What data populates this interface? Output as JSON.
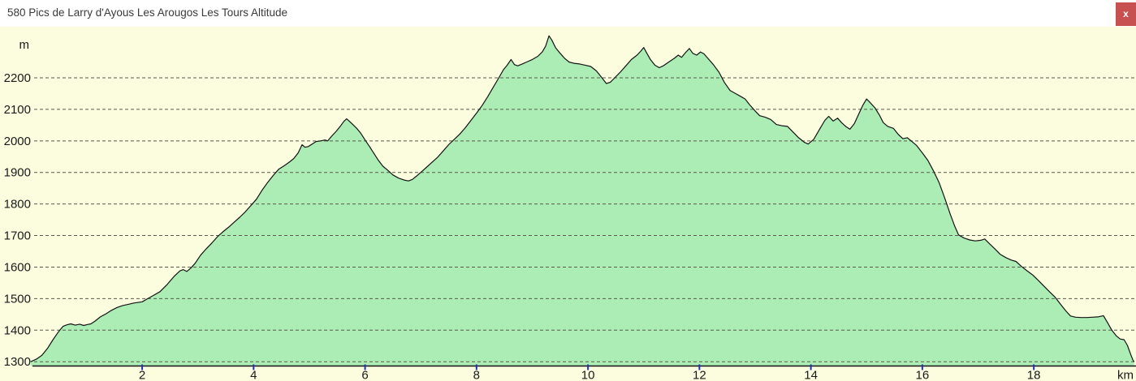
{
  "window": {
    "title": "580 Pics de Larry d'Ayous Les Arougos Les Tours Altitude",
    "close_label": "x"
  },
  "chart_data": {
    "type": "area",
    "title": "580 Pics de Larry d'Ayous Les Arougos Les Tours Altitude",
    "xlabel": "km",
    "ylabel": "m",
    "xlim": [
      0,
      19.85
    ],
    "ylim": [
      1287,
      2350
    ],
    "x_ticks": [
      2,
      4,
      6,
      8,
      10,
      12,
      14,
      16,
      18
    ],
    "y_ticks": [
      1300,
      1400,
      1500,
      1600,
      1700,
      1800,
      1900,
      2000,
      2100,
      2200
    ],
    "grid": "horizontal-dashed",
    "legend": "none",
    "colors": {
      "background": "#fcfcdf",
      "fill": "#abedb4",
      "line": "#141414",
      "grid": "#5a5a50",
      "tick": "#2233bb",
      "label": "#1a1a1a",
      "close_button": "#c75050"
    },
    "series": [
      {
        "name": "Altitude",
        "points": [
          [
            0.0,
            1300
          ],
          [
            0.1,
            1308
          ],
          [
            0.2,
            1320
          ],
          [
            0.3,
            1342
          ],
          [
            0.4,
            1370
          ],
          [
            0.5,
            1395
          ],
          [
            0.58,
            1412
          ],
          [
            0.65,
            1417
          ],
          [
            0.72,
            1420
          ],
          [
            0.8,
            1416
          ],
          [
            0.88,
            1419
          ],
          [
            0.95,
            1415
          ],
          [
            1.02,
            1418
          ],
          [
            1.08,
            1420
          ],
          [
            1.15,
            1428
          ],
          [
            1.25,
            1442
          ],
          [
            1.35,
            1452
          ],
          [
            1.45,
            1463
          ],
          [
            1.55,
            1472
          ],
          [
            1.65,
            1478
          ],
          [
            1.75,
            1482
          ],
          [
            1.85,
            1486
          ],
          [
            2.0,
            1490
          ],
          [
            2.1,
            1500
          ],
          [
            2.2,
            1510
          ],
          [
            2.32,
            1522
          ],
          [
            2.45,
            1545
          ],
          [
            2.58,
            1572
          ],
          [
            2.68,
            1588
          ],
          [
            2.74,
            1592
          ],
          [
            2.8,
            1586
          ],
          [
            2.88,
            1598
          ],
          [
            2.95,
            1612
          ],
          [
            3.05,
            1638
          ],
          [
            3.15,
            1658
          ],
          [
            3.25,
            1676
          ],
          [
            3.35,
            1696
          ],
          [
            3.45,
            1712
          ],
          [
            3.55,
            1726
          ],
          [
            3.65,
            1742
          ],
          [
            3.75,
            1758
          ],
          [
            3.85,
            1775
          ],
          [
            3.95,
            1795
          ],
          [
            4.05,
            1815
          ],
          [
            4.15,
            1843
          ],
          [
            4.25,
            1868
          ],
          [
            4.35,
            1890
          ],
          [
            4.45,
            1910
          ],
          [
            4.52,
            1918
          ],
          [
            4.58,
            1925
          ],
          [
            4.65,
            1934
          ],
          [
            4.72,
            1944
          ],
          [
            4.8,
            1962
          ],
          [
            4.87,
            1988
          ],
          [
            4.92,
            1980
          ],
          [
            4.98,
            1982
          ],
          [
            5.05,
            1990
          ],
          [
            5.12,
            1998
          ],
          [
            5.2,
            2000
          ],
          [
            5.28,
            2003
          ],
          [
            5.33,
            2000
          ],
          [
            5.4,
            2015
          ],
          [
            5.48,
            2030
          ],
          [
            5.55,
            2045
          ],
          [
            5.62,
            2062
          ],
          [
            5.67,
            2070
          ],
          [
            5.72,
            2062
          ],
          [
            5.78,
            2052
          ],
          [
            5.85,
            2040
          ],
          [
            5.92,
            2025
          ],
          [
            6.0,
            2003
          ],
          [
            6.08,
            1982
          ],
          [
            6.16,
            1960
          ],
          [
            6.24,
            1938
          ],
          [
            6.32,
            1920
          ],
          [
            6.4,
            1908
          ],
          [
            6.5,
            1892
          ],
          [
            6.6,
            1882
          ],
          [
            6.7,
            1876
          ],
          [
            6.78,
            1873
          ],
          [
            6.85,
            1878
          ],
          [
            6.92,
            1888
          ],
          [
            7.0,
            1900
          ],
          [
            7.1,
            1916
          ],
          [
            7.2,
            1932
          ],
          [
            7.3,
            1948
          ],
          [
            7.4,
            1968
          ],
          [
            7.5,
            1988
          ],
          [
            7.6,
            2005
          ],
          [
            7.7,
            2022
          ],
          [
            7.8,
            2042
          ],
          [
            7.9,
            2065
          ],
          [
            8.0,
            2088
          ],
          [
            8.1,
            2112
          ],
          [
            8.2,
            2140
          ],
          [
            8.3,
            2170
          ],
          [
            8.4,
            2200
          ],
          [
            8.48,
            2225
          ],
          [
            8.55,
            2240
          ],
          [
            8.62,
            2258
          ],
          [
            8.68,
            2242
          ],
          [
            8.74,
            2238
          ],
          [
            8.82,
            2244
          ],
          [
            8.9,
            2250
          ],
          [
            9.0,
            2258
          ],
          [
            9.1,
            2268
          ],
          [
            9.18,
            2282
          ],
          [
            9.24,
            2300
          ],
          [
            9.3,
            2333
          ],
          [
            9.35,
            2320
          ],
          [
            9.42,
            2295
          ],
          [
            9.5,
            2278
          ],
          [
            9.58,
            2262
          ],
          [
            9.66,
            2250
          ],
          [
            9.75,
            2246
          ],
          [
            9.85,
            2244
          ],
          [
            9.95,
            2240
          ],
          [
            10.05,
            2236
          ],
          [
            10.15,
            2222
          ],
          [
            10.25,
            2200
          ],
          [
            10.33,
            2182
          ],
          [
            10.4,
            2186
          ],
          [
            10.48,
            2200
          ],
          [
            10.58,
            2218
          ],
          [
            10.68,
            2238
          ],
          [
            10.78,
            2258
          ],
          [
            10.88,
            2272
          ],
          [
            10.95,
            2285
          ],
          [
            11.0,
            2296
          ],
          [
            11.05,
            2280
          ],
          [
            11.12,
            2258
          ],
          [
            11.2,
            2240
          ],
          [
            11.28,
            2232
          ],
          [
            11.35,
            2238
          ],
          [
            11.45,
            2250
          ],
          [
            11.55,
            2262
          ],
          [
            11.62,
            2272
          ],
          [
            11.68,
            2265
          ],
          [
            11.75,
            2280
          ],
          [
            11.82,
            2293
          ],
          [
            11.88,
            2278
          ],
          [
            11.95,
            2272
          ],
          [
            12.02,
            2282
          ],
          [
            12.08,
            2276
          ],
          [
            12.15,
            2262
          ],
          [
            12.25,
            2242
          ],
          [
            12.35,
            2218
          ],
          [
            12.45,
            2185
          ],
          [
            12.55,
            2160
          ],
          [
            12.65,
            2150
          ],
          [
            12.75,
            2140
          ],
          [
            12.82,
            2133
          ],
          [
            12.9,
            2115
          ],
          [
            13.0,
            2095
          ],
          [
            13.08,
            2080
          ],
          [
            13.18,
            2075
          ],
          [
            13.28,
            2068
          ],
          [
            13.38,
            2052
          ],
          [
            13.48,
            2048
          ],
          [
            13.58,
            2046
          ],
          [
            13.68,
            2028
          ],
          [
            13.78,
            2010
          ],
          [
            13.88,
            1996
          ],
          [
            13.95,
            1990
          ],
          [
            14.05,
            2005
          ],
          [
            14.15,
            2035
          ],
          [
            14.25,
            2065
          ],
          [
            14.32,
            2078
          ],
          [
            14.4,
            2063
          ],
          [
            14.48,
            2072
          ],
          [
            14.55,
            2058
          ],
          [
            14.63,
            2045
          ],
          [
            14.7,
            2037
          ],
          [
            14.78,
            2055
          ],
          [
            14.85,
            2082
          ],
          [
            14.93,
            2112
          ],
          [
            15.0,
            2133
          ],
          [
            15.07,
            2120
          ],
          [
            15.15,
            2105
          ],
          [
            15.23,
            2082
          ],
          [
            15.3,
            2058
          ],
          [
            15.38,
            2046
          ],
          [
            15.48,
            2040
          ],
          [
            15.57,
            2020
          ],
          [
            15.65,
            2007
          ],
          [
            15.73,
            2010
          ],
          [
            15.8,
            2000
          ],
          [
            15.9,
            1985
          ],
          [
            16.0,
            1962
          ],
          [
            16.1,
            1938
          ],
          [
            16.2,
            1905
          ],
          [
            16.3,
            1868
          ],
          [
            16.4,
            1820
          ],
          [
            16.5,
            1768
          ],
          [
            16.58,
            1730
          ],
          [
            16.65,
            1702
          ],
          [
            16.75,
            1692
          ],
          [
            16.85,
            1686
          ],
          [
            16.95,
            1683
          ],
          [
            17.05,
            1685
          ],
          [
            17.12,
            1689
          ],
          [
            17.2,
            1675
          ],
          [
            17.3,
            1658
          ],
          [
            17.4,
            1640
          ],
          [
            17.5,
            1630
          ],
          [
            17.6,
            1622
          ],
          [
            17.68,
            1618
          ],
          [
            17.78,
            1602
          ],
          [
            17.88,
            1588
          ],
          [
            17.98,
            1575
          ],
          [
            18.08,
            1558
          ],
          [
            18.18,
            1540
          ],
          [
            18.28,
            1522
          ],
          [
            18.38,
            1505
          ],
          [
            18.48,
            1482
          ],
          [
            18.58,
            1460
          ],
          [
            18.66,
            1445
          ],
          [
            18.75,
            1441
          ],
          [
            18.85,
            1440
          ],
          [
            18.95,
            1440
          ],
          [
            19.05,
            1441
          ],
          [
            19.15,
            1442
          ],
          [
            19.25,
            1446
          ],
          [
            19.32,
            1425
          ],
          [
            19.4,
            1400
          ],
          [
            19.48,
            1382
          ],
          [
            19.55,
            1372
          ],
          [
            19.62,
            1370
          ],
          [
            19.68,
            1352
          ],
          [
            19.74,
            1322
          ],
          [
            19.78,
            1305
          ],
          [
            19.8,
            1300
          ]
        ]
      }
    ]
  }
}
